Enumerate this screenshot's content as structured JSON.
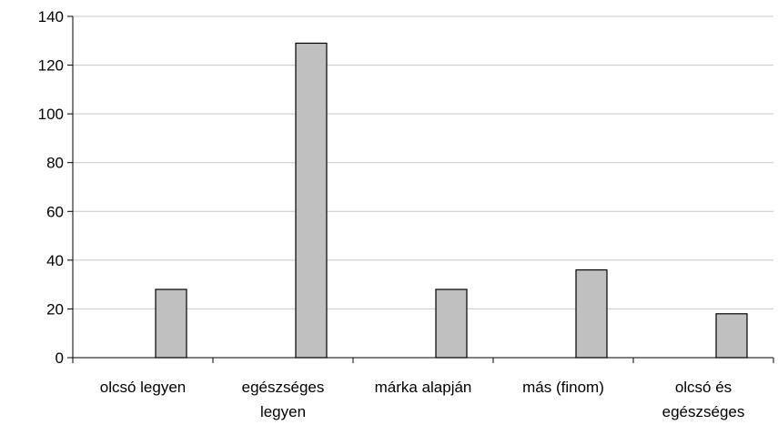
{
  "chart_data": {
    "type": "bar",
    "title": "",
    "xlabel": "",
    "ylabel": "",
    "ylim": [
      0,
      140
    ],
    "yticks": [
      0,
      20,
      40,
      60,
      80,
      100,
      120,
      140
    ],
    "grid": true,
    "categories": [
      [
        "olcsó legyen"
      ],
      [
        "egészséges",
        "legyen"
      ],
      [
        "márka alapján"
      ],
      [
        "más (finom)"
      ],
      [
        "olcsó és",
        "egészséges"
      ]
    ],
    "values": [
      28,
      129,
      28,
      36,
      18
    ],
    "colors": {
      "bar_fill": "#c0c0c0",
      "bar_stroke": "#000000",
      "grid": "#c8c8c8",
      "axis": "#000000"
    }
  }
}
